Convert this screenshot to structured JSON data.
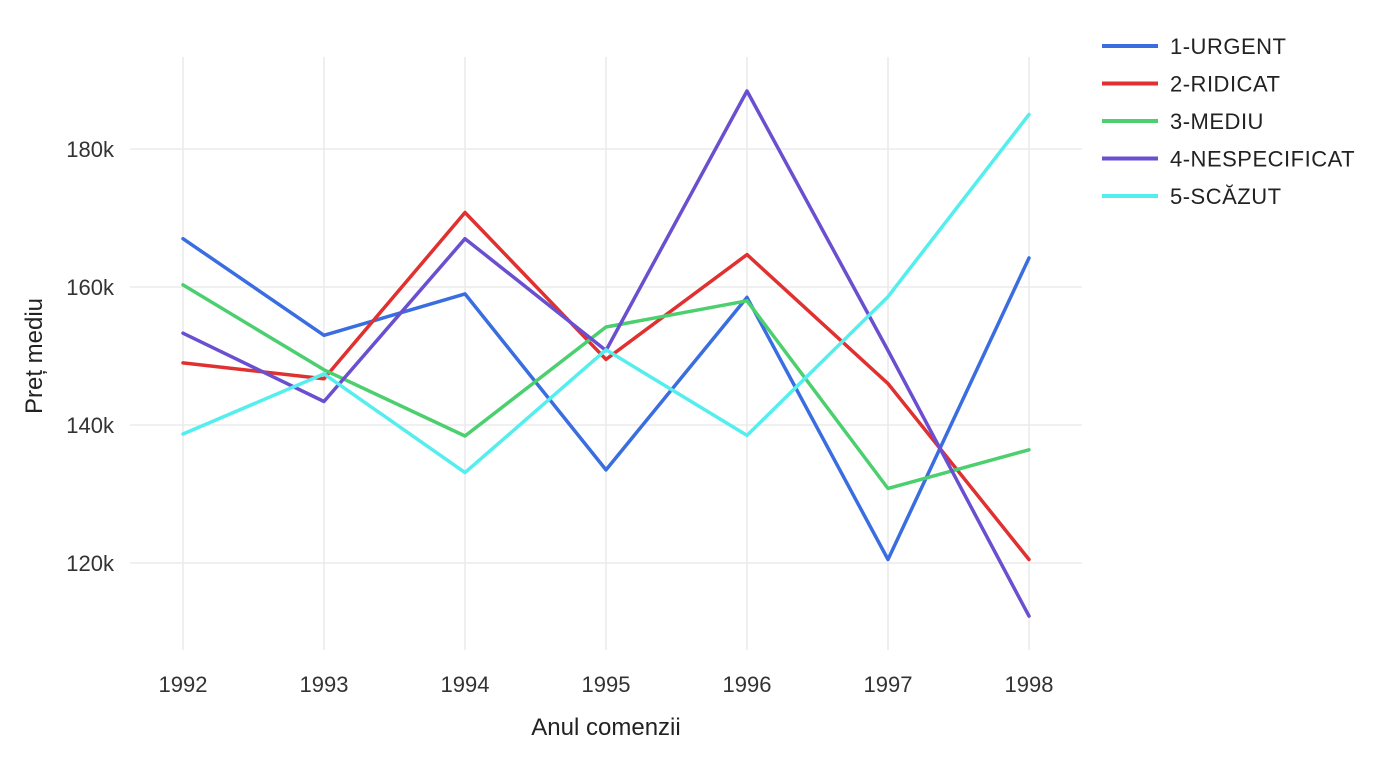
{
  "chart_data": {
    "type": "line",
    "xlabel": "Anul comenzii",
    "ylabel": "Preț mediu",
    "x": [
      1992,
      1993,
      1994,
      1995,
      1996,
      1997,
      1998
    ],
    "x_tick_labels": [
      "1992",
      "1993",
      "1994",
      "1995",
      "1996",
      "1997",
      "1998"
    ],
    "y_ticks": [
      120000,
      140000,
      160000,
      180000
    ],
    "y_tick_labels": [
      "120k",
      "140k",
      "160k",
      "180k"
    ],
    "ylim": [
      107000,
      196000
    ],
    "grid": true,
    "legend_position": "top-right",
    "series": [
      {
        "name": "1-URGENT",
        "color": "#3a6ee0",
        "values": [
          167000,
          153000,
          159000,
          133500,
          158500,
          120500,
          164200
        ]
      },
      {
        "name": "2-RIDICAT",
        "color": "#e03030",
        "values": [
          149000,
          146700,
          170800,
          149500,
          164700,
          146000,
          120500
        ]
      },
      {
        "name": "3-MEDIU",
        "color": "#4ccf6e",
        "values": [
          160300,
          148000,
          138400,
          154200,
          158000,
          130800,
          136400
        ]
      },
      {
        "name": "4-NESPECIFICAT",
        "color": "#6a4fd0",
        "values": [
          153300,
          143400,
          167000,
          150800,
          188400,
          150800,
          112300
        ]
      },
      {
        "name": "5-SCĂZUT",
        "color": "#55eeee",
        "values": [
          138700,
          147400,
          133100,
          150900,
          138500,
          158600,
          185000
        ]
      }
    ]
  }
}
